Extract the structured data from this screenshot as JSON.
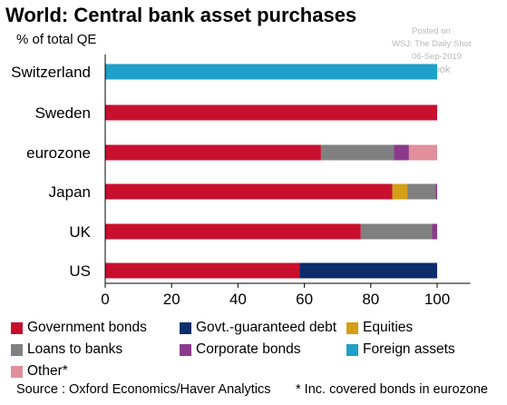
{
  "chart_data": {
    "type": "bar",
    "orientation": "horizontal",
    "stacked": true,
    "title": "World: Central bank asset purchases",
    "ylabel": "% of total QE",
    "categories": [
      "Switzerland",
      "Sweden",
      "eurozone",
      "Japan",
      "UK",
      "US"
    ],
    "xlim": [
      0,
      110
    ],
    "xticks": [
      0,
      20,
      40,
      60,
      80,
      100
    ],
    "series": [
      {
        "name": "Government bonds",
        "color": "#c8102e",
        "values": [
          0,
          100,
          65,
          86.5,
          77,
          58.5
        ]
      },
      {
        "name": "Govt.-guaranteed debt",
        "color": "#0d2c6c",
        "values": [
          0,
          0,
          0,
          0,
          0,
          41.5
        ]
      },
      {
        "name": "Equities",
        "color": "#d4a017",
        "values": [
          0,
          0,
          0,
          4.5,
          0,
          0
        ]
      },
      {
        "name": "Loans to banks",
        "color": "#808080",
        "values": [
          0,
          0,
          22,
          8.5,
          21.5,
          0
        ]
      },
      {
        "name": "Corporate bonds",
        "color": "#8b3a8b",
        "values": [
          0,
          0,
          4.5,
          0.5,
          1.5,
          0
        ]
      },
      {
        "name": "Foreign assets",
        "color": "#1ea0c8",
        "values": [
          100,
          0,
          0,
          0,
          0,
          0
        ]
      },
      {
        "name": "Other*",
        "color": "#e0909a",
        "values": [
          0,
          0,
          8.5,
          0,
          0,
          0
        ]
      }
    ],
    "legend_placement": "bottom",
    "grid": false
  },
  "watermark": [
    "Posted on",
    "WSJ: The Daily Shot",
    "06-Sep-2019",
    "@SoberLook"
  ],
  "source": "Source : Oxford Economics/Haver Analytics",
  "footnote": "* Inc. covered bonds in eurozone"
}
